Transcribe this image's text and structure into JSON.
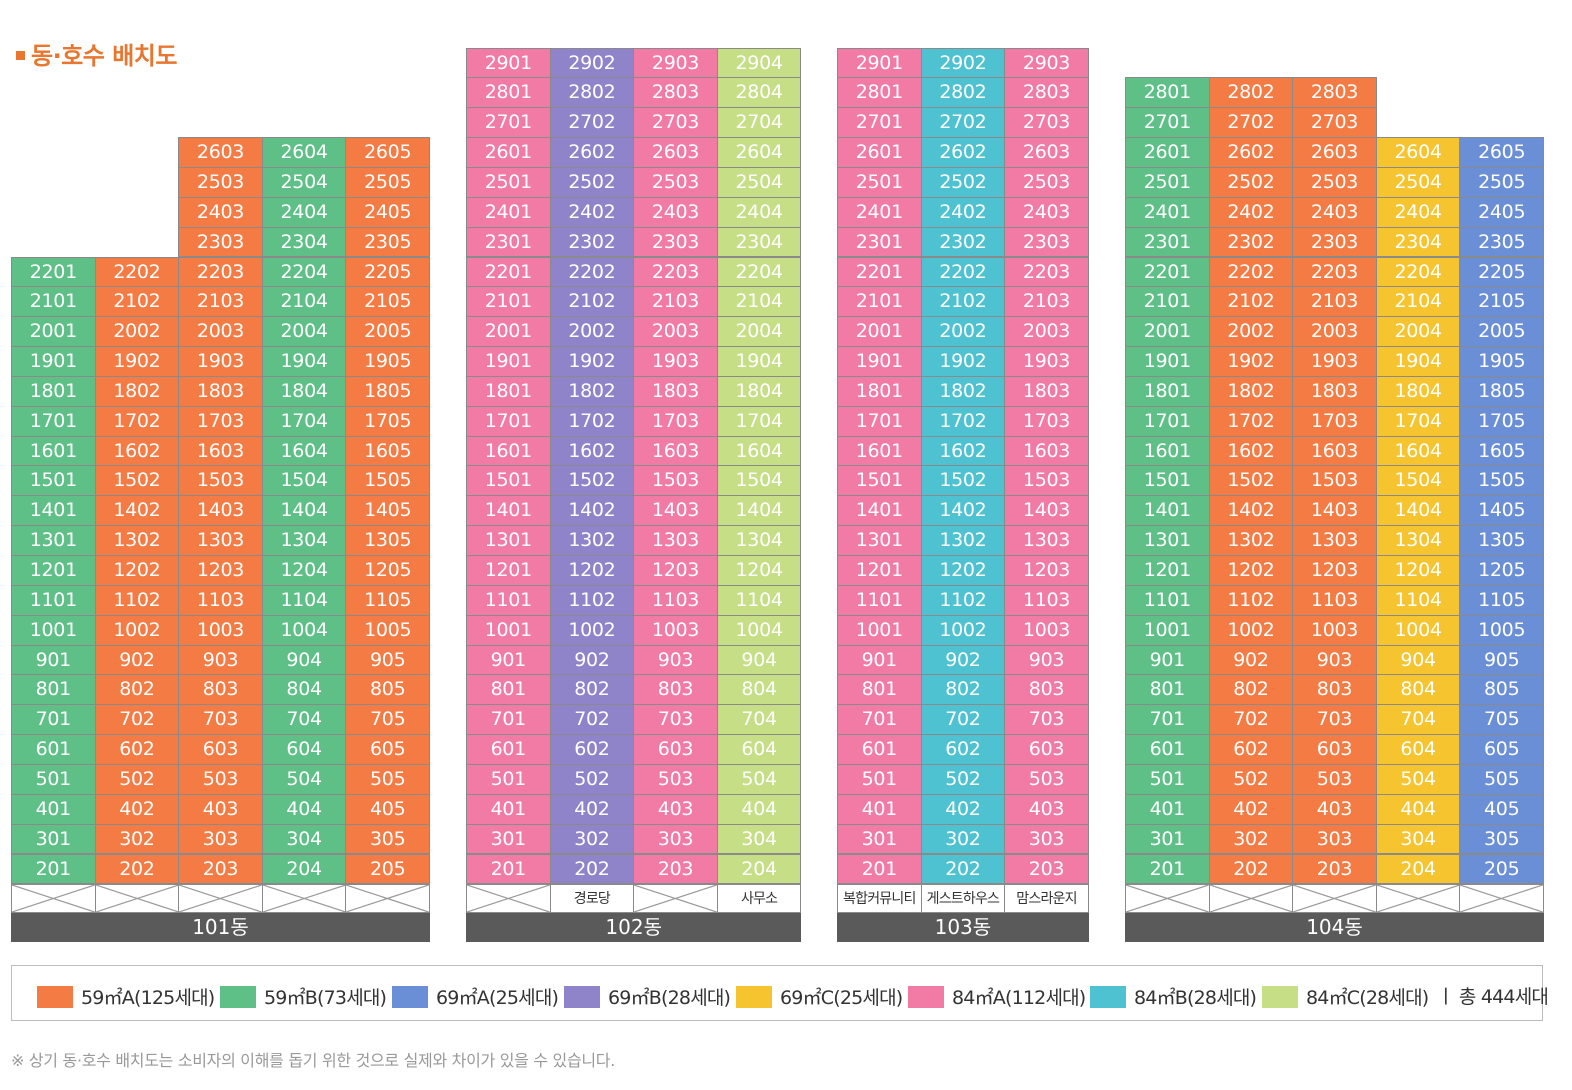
{
  "title": "동·호수 배치도",
  "colors": {
    "59A": "#f47b44",
    "59B": "#5fc087",
    "69A": "#6a8fd6",
    "69B": "#8f84c9",
    "69C": "#f6c42f",
    "84A": "#f27ba6",
    "84B": "#4ec2d1",
    "84C": "#c6df86"
  },
  "buildings": [
    {
      "name": "101동",
      "top_floor": 26,
      "columns": [
        {
          "line": "01",
          "type": "59B",
          "max_floor": 22,
          "ground_label": ""
        },
        {
          "line": "02",
          "type": "59A",
          "max_floor": 22,
          "ground_label": ""
        },
        {
          "line": "03",
          "type": "59A",
          "max_floor": 26,
          "ground_label": ""
        },
        {
          "line": "04",
          "type": "59B",
          "max_floor": 26,
          "ground_label": ""
        },
        {
          "line": "05",
          "type": "59A",
          "max_floor": 26,
          "ground_label": ""
        }
      ]
    },
    {
      "name": "102동",
      "top_floor": 29,
      "columns": [
        {
          "line": "01",
          "type": "84A",
          "max_floor": 29,
          "ground_label": ""
        },
        {
          "line": "02",
          "type": "69B",
          "max_floor": 29,
          "ground_label": "경로당"
        },
        {
          "line": "03",
          "type": "84A",
          "max_floor": 29,
          "ground_label": ""
        },
        {
          "line": "04",
          "type": "84C",
          "max_floor": 29,
          "ground_label": "사무소"
        }
      ]
    },
    {
      "name": "103동",
      "top_floor": 29,
      "columns": [
        {
          "line": "01",
          "type": "84A",
          "max_floor": 29,
          "ground_label": "복합커뮤니티"
        },
        {
          "line": "02",
          "type": "84B",
          "max_floor": 29,
          "ground_label": "게스트하우스"
        },
        {
          "line": "03",
          "type": "84A",
          "max_floor": 29,
          "ground_label": "맘스라운지"
        }
      ]
    },
    {
      "name": "104동",
      "top_floor": 28,
      "columns": [
        {
          "line": "01",
          "type": "59B",
          "max_floor": 28,
          "ground_label": ""
        },
        {
          "line": "02",
          "type": "59A",
          "max_floor": 28,
          "ground_label": ""
        },
        {
          "line": "03",
          "type": "59A",
          "max_floor": 28,
          "ground_label": ""
        },
        {
          "line": "04",
          "type": "69C",
          "max_floor": 26,
          "ground_label": ""
        },
        {
          "line": "05",
          "type": "69A",
          "max_floor": 26,
          "ground_label": ""
        }
      ]
    }
  ],
  "legend": [
    {
      "type": "59A",
      "label": "59㎡A(125세대)"
    },
    {
      "type": "59B",
      "label": "59㎡B(73세대)"
    },
    {
      "type": "69A",
      "label": "69㎡A(25세대)"
    },
    {
      "type": "69B",
      "label": "69㎡B(28세대)"
    },
    {
      "type": "69C",
      "label": "69㎡C(25세대)"
    },
    {
      "type": "84A",
      "label": "84㎡A(112세대)"
    },
    {
      "type": "84B",
      "label": "84㎡B(28세대)"
    },
    {
      "type": "84C",
      "label": "84㎡C(28세대)"
    }
  ],
  "total": "ㅣ 총 444세대",
  "note": "※ 상기 동·호수 배치도는 소비자의 이해를 돕기 위한 것으로 실제와 차이가 있을 수 있습니다."
}
